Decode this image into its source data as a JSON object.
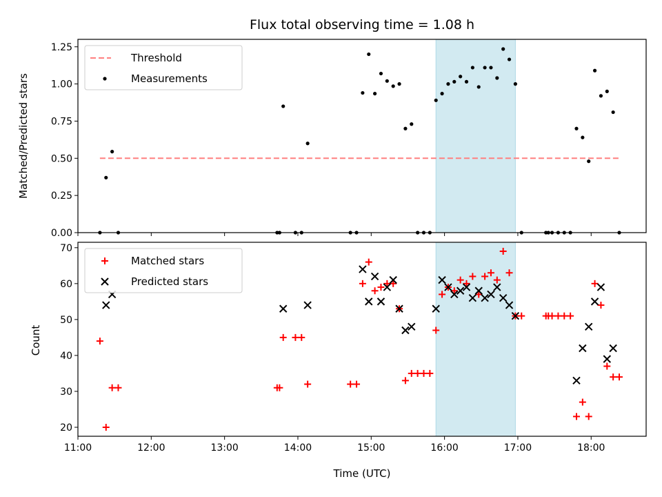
{
  "chart_data": [
    {
      "type": "scatter",
      "title": "Flux total observing time = 1.08 h",
      "xlabel": "",
      "ylabel": "Matched/Predicted stars",
      "xlim": [
        "11:00",
        "18:45"
      ],
      "ylim": [
        0,
        1.3
      ],
      "yticks": [
        0.0,
        0.25,
        0.5,
        0.75,
        1.0,
        1.25
      ],
      "ytick_labels": [
        "0.00",
        "0.25",
        "0.50",
        "0.75",
        "1.00",
        "1.25"
      ],
      "highlight_span": {
        "from": "15:53",
        "to": "16:58",
        "color": "#add8e6"
      },
      "legend": {
        "placement": "top-left",
        "entries": [
          "Threshold",
          "Measurements"
        ]
      },
      "threshold": {
        "name": "Threshold",
        "value": 0.5,
        "from": "11:18",
        "to": "18:23",
        "color": "#ff7f7f"
      },
      "series": [
        {
          "name": "Measurements",
          "color": "#000000",
          "points": [
            [
              "11:18",
              0.0
            ],
            [
              "11:23",
              0.37
            ],
            [
              "11:28",
              0.545
            ],
            [
              "11:33",
              0.0
            ],
            [
              "13:43",
              0.0
            ],
            [
              "13:45",
              0.0
            ],
            [
              "13:48",
              0.85
            ],
            [
              "13:58",
              0.0
            ],
            [
              "14:03",
              0.0
            ],
            [
              "14:08",
              0.6
            ],
            [
              "14:43",
              0.0
            ],
            [
              "14:48",
              0.0
            ],
            [
              "14:53",
              0.94
            ],
            [
              "14:58",
              1.2
            ],
            [
              "15:03",
              0.935
            ],
            [
              "15:08",
              1.07
            ],
            [
              "15:13",
              1.02
            ],
            [
              "15:18",
              0.985
            ],
            [
              "15:23",
              1.0
            ],
            [
              "15:28",
              0.7
            ],
            [
              "15:33",
              0.73
            ],
            [
              "15:38",
              0.0
            ],
            [
              "15:43",
              0.0
            ],
            [
              "15:48",
              0.0
            ],
            [
              "15:53",
              0.89
            ],
            [
              "15:58",
              0.935
            ],
            [
              "16:03",
              1.0
            ],
            [
              "16:08",
              1.015
            ],
            [
              "16:13",
              1.05
            ],
            [
              "16:18",
              1.015
            ],
            [
              "16:23",
              1.11
            ],
            [
              "16:28",
              0.98
            ],
            [
              "16:33",
              1.11
            ],
            [
              "16:38",
              1.11
            ],
            [
              "16:43",
              1.04
            ],
            [
              "16:48",
              1.235
            ],
            [
              "16:53",
              1.165
            ],
            [
              "16:58",
              1.0
            ],
            [
              "17:03",
              0.0
            ],
            [
              "17:23",
              0.0
            ],
            [
              "17:25",
              0.0
            ],
            [
              "17:28",
              0.0
            ],
            [
              "17:33",
              0.0
            ],
            [
              "17:38",
              0.0
            ],
            [
              "17:43",
              0.0
            ],
            [
              "17:48",
              0.7
            ],
            [
              "17:53",
              0.64
            ],
            [
              "17:58",
              0.48
            ],
            [
              "18:03",
              1.09
            ],
            [
              "18:08",
              0.92
            ],
            [
              "18:13",
              0.95
            ],
            [
              "18:18",
              0.81
            ],
            [
              "18:23",
              0.0
            ]
          ]
        }
      ]
    },
    {
      "type": "scatter",
      "title": "",
      "xlabel": "Time (UTC)",
      "ylabel": "Count",
      "xlim": [
        "11:00",
        "18:45"
      ],
      "ylim": [
        17.5,
        71.5
      ],
      "yticks": [
        20,
        30,
        40,
        50,
        60,
        70
      ],
      "ytick_labels": [
        "20",
        "30",
        "40",
        "50",
        "60",
        "70"
      ],
      "xticks": [
        "11:00",
        "12:00",
        "13:00",
        "14:00",
        "15:00",
        "16:00",
        "17:00",
        "18:00"
      ],
      "xtick_labels": [
        "11:00",
        "12:00",
        "13:00",
        "14:00",
        "15:00",
        "16:00",
        "17:00",
        "18:00"
      ],
      "highlight_span": {
        "from": "15:53",
        "to": "16:58",
        "color": "#add8e6"
      },
      "legend": {
        "placement": "top-left",
        "entries": [
          "Matched stars",
          "Predicted stars"
        ]
      },
      "series": [
        {
          "name": "Matched stars",
          "marker": "plus",
          "color": "#ff0000",
          "points": [
            [
              "11:18",
              44
            ],
            [
              "11:23",
              20
            ],
            [
              "11:28",
              31
            ],
            [
              "11:33",
              31
            ],
            [
              "13:43",
              31
            ],
            [
              "13:45",
              31
            ],
            [
              "13:48",
              45
            ],
            [
              "13:58",
              45
            ],
            [
              "14:03",
              45
            ],
            [
              "14:08",
              32
            ],
            [
              "14:43",
              32
            ],
            [
              "14:48",
              32
            ],
            [
              "14:53",
              60
            ],
            [
              "14:58",
              66
            ],
            [
              "15:03",
              58
            ],
            [
              "15:08",
              59
            ],
            [
              "15:13",
              60
            ],
            [
              "15:18",
              60
            ],
            [
              "15:23",
              53
            ],
            [
              "15:28",
              33
            ],
            [
              "15:33",
              35
            ],
            [
              "15:38",
              35
            ],
            [
              "15:43",
              35
            ],
            [
              "15:48",
              35
            ],
            [
              "15:53",
              47
            ],
            [
              "15:58",
              57
            ],
            [
              "16:03",
              59
            ],
            [
              "16:08",
              58
            ],
            [
              "16:13",
              61
            ],
            [
              "16:18",
              60
            ],
            [
              "16:23",
              62
            ],
            [
              "16:28",
              57
            ],
            [
              "16:33",
              62
            ],
            [
              "16:38",
              63
            ],
            [
              "16:43",
              61
            ],
            [
              "16:48",
              69
            ],
            [
              "16:53",
              63
            ],
            [
              "16:58",
              51
            ],
            [
              "17:03",
              51
            ],
            [
              "17:23",
              51
            ],
            [
              "17:25",
              51
            ],
            [
              "17:28",
              51
            ],
            [
              "17:33",
              51
            ],
            [
              "17:38",
              51
            ],
            [
              "17:43",
              51
            ],
            [
              "17:48",
              23
            ],
            [
              "17:53",
              27
            ],
            [
              "17:58",
              23
            ],
            [
              "18:03",
              60
            ],
            [
              "18:08",
              54
            ],
            [
              "18:13",
              37
            ],
            [
              "18:18",
              34
            ],
            [
              "18:23",
              34
            ]
          ]
        },
        {
          "name": "Predicted stars",
          "marker": "x",
          "color": "#000000",
          "points": [
            [
              "11:23",
              54
            ],
            [
              "11:28",
              57
            ],
            [
              "13:48",
              53
            ],
            [
              "14:08",
              54
            ],
            [
              "14:53",
              64
            ],
            [
              "14:58",
              55
            ],
            [
              "15:03",
              62
            ],
            [
              "15:08",
              55
            ],
            [
              "15:13",
              59
            ],
            [
              "15:18",
              61
            ],
            [
              "15:23",
              53
            ],
            [
              "15:28",
              47
            ],
            [
              "15:33",
              48
            ],
            [
              "15:53",
              53
            ],
            [
              "15:58",
              61
            ],
            [
              "16:03",
              59
            ],
            [
              "16:08",
              57
            ],
            [
              "16:13",
              58
            ],
            [
              "16:18",
              59
            ],
            [
              "16:23",
              56
            ],
            [
              "16:28",
              58
            ],
            [
              "16:33",
              56
            ],
            [
              "16:38",
              57
            ],
            [
              "16:43",
              59
            ],
            [
              "16:48",
              56
            ],
            [
              "16:53",
              54
            ],
            [
              "16:58",
              51
            ],
            [
              "17:48",
              33
            ],
            [
              "17:53",
              42
            ],
            [
              "17:58",
              48
            ],
            [
              "18:03",
              55
            ],
            [
              "18:08",
              59
            ],
            [
              "18:13",
              39
            ],
            [
              "18:18",
              42
            ]
          ]
        }
      ]
    }
  ]
}
